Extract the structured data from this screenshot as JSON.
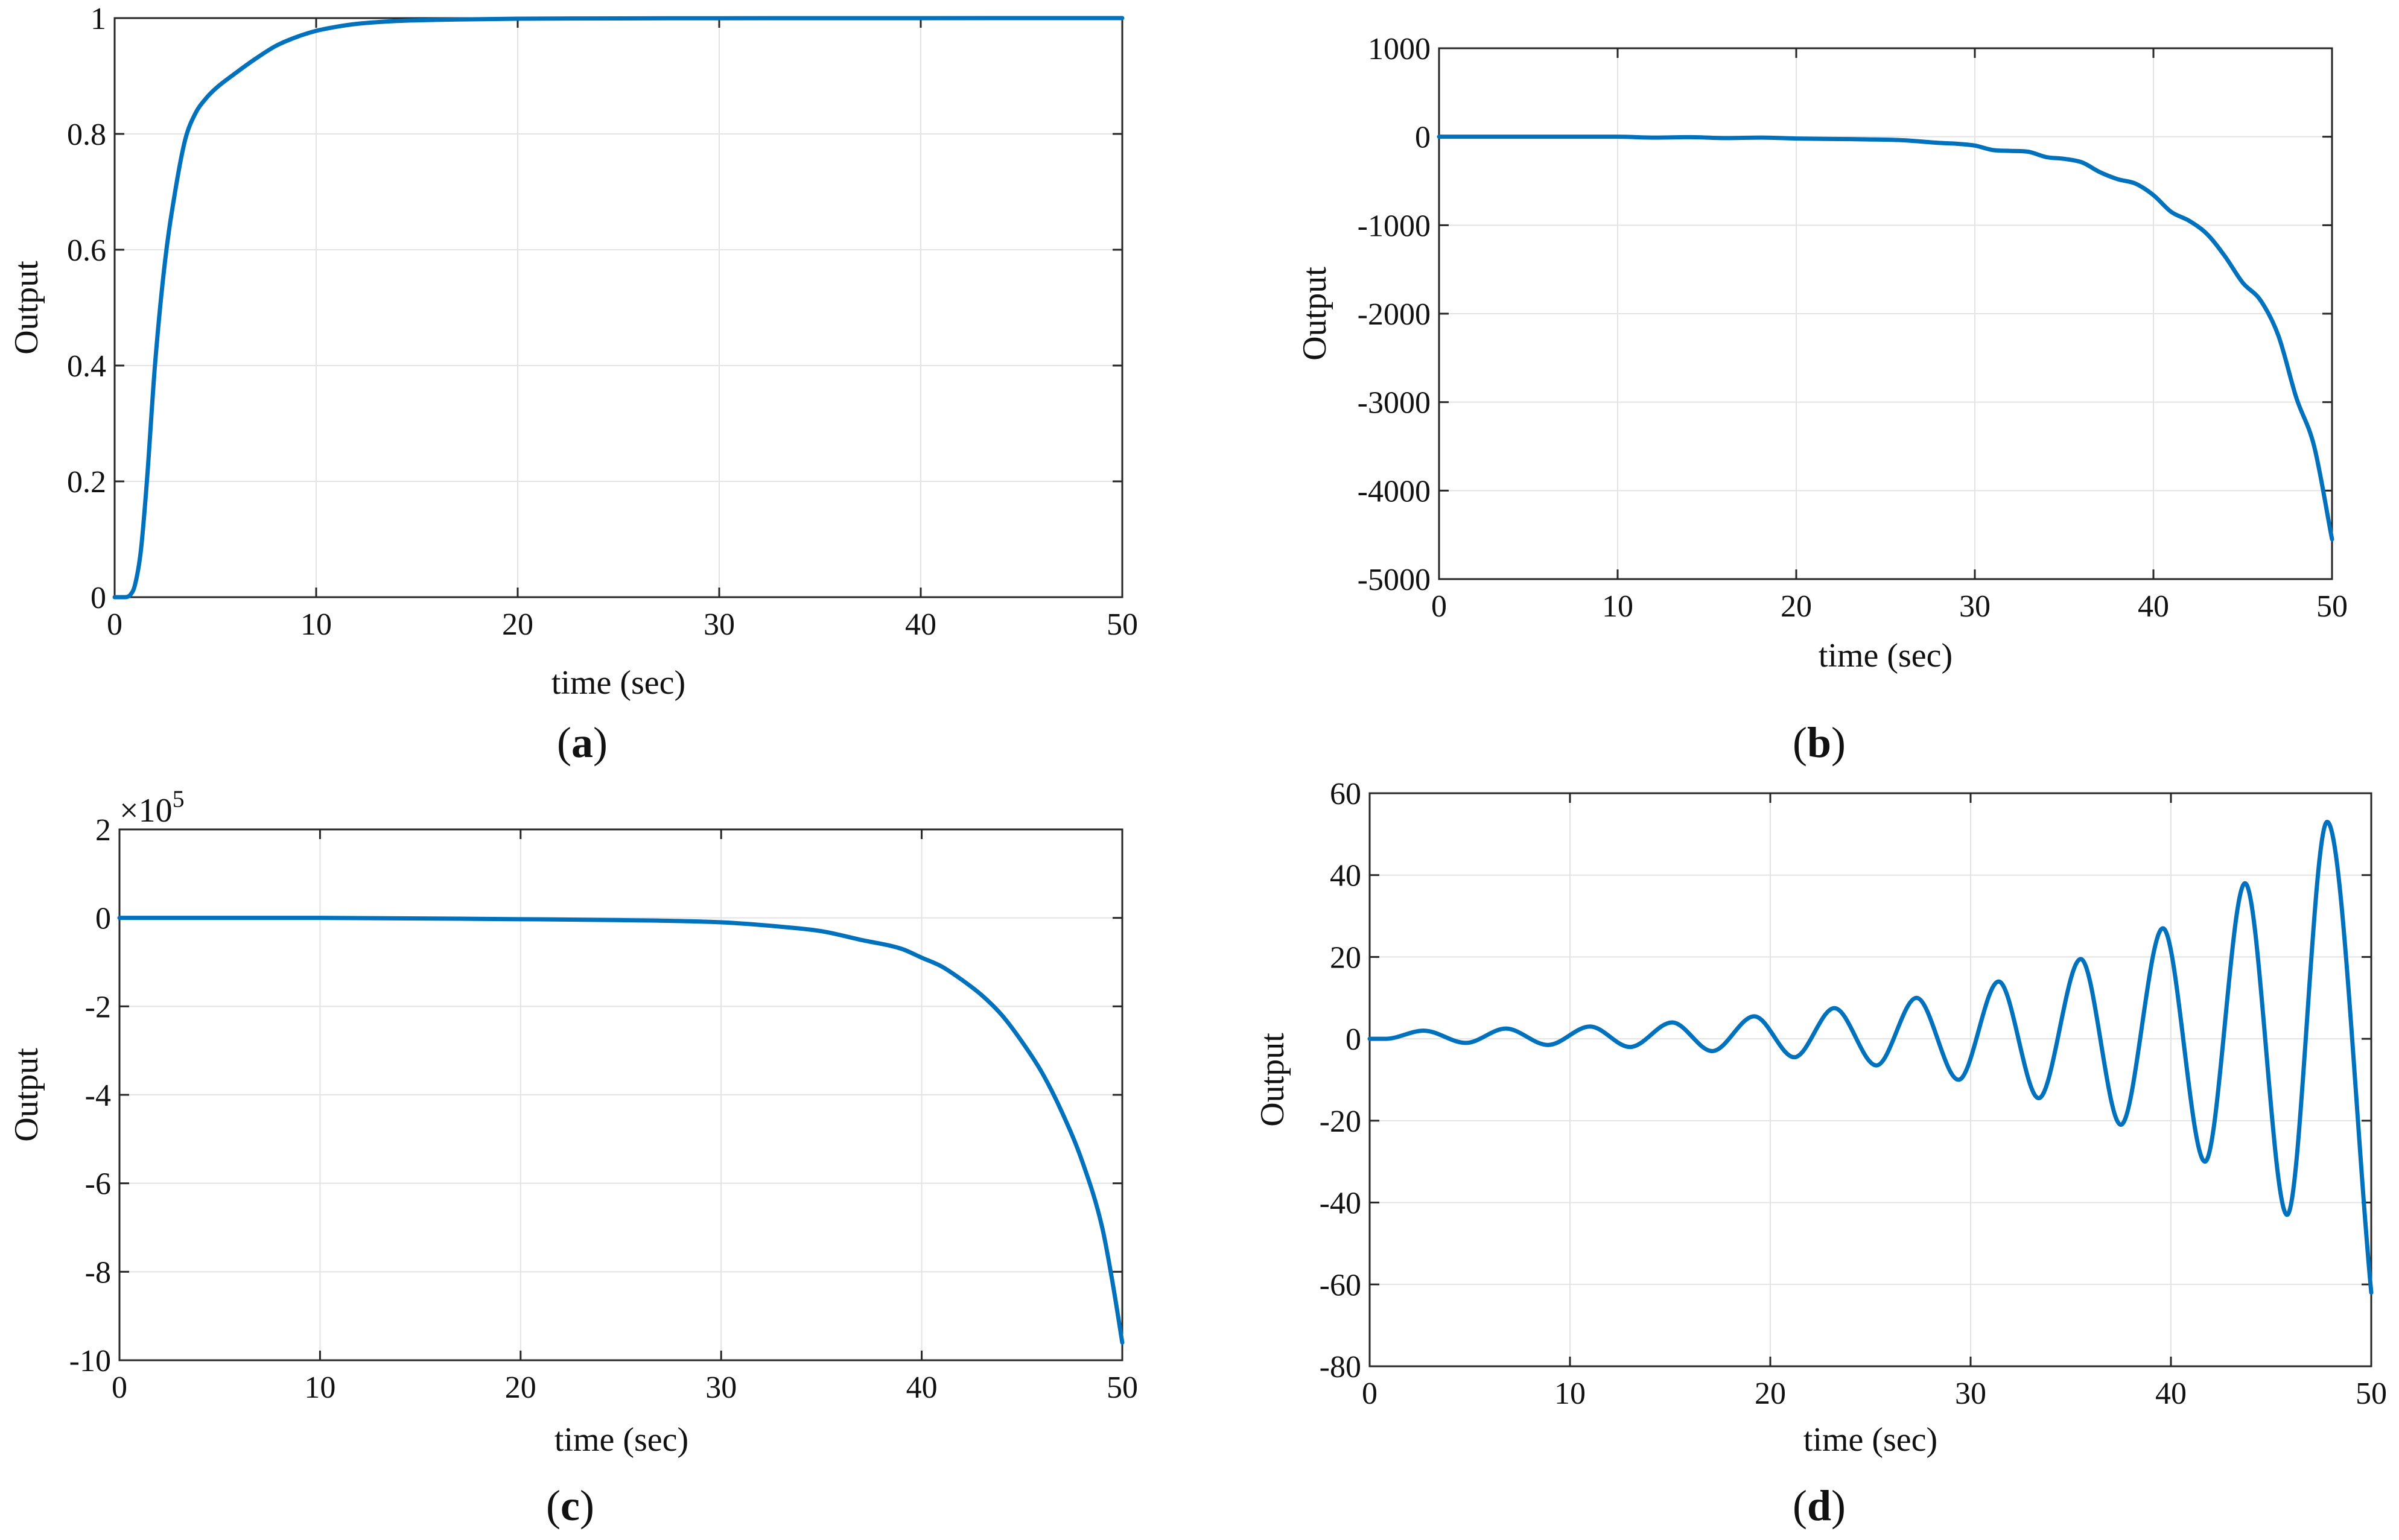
{
  "figure": {
    "line_color": "#0072BD",
    "grid_color": "#e3e3e3",
    "axis_color": "#262626"
  },
  "chart_data": [
    {
      "id": "a",
      "type": "line",
      "caption": "a",
      "xlabel": "time (sec)",
      "ylabel": "Output",
      "xlim": [
        0,
        50
      ],
      "ylim": [
        0,
        1
      ],
      "xticks": [
        0,
        10,
        20,
        30,
        40,
        50
      ],
      "xtick_labels": [
        "0",
        "10",
        "20",
        "30",
        "40",
        "50"
      ],
      "yticks": [
        0,
        0.2,
        0.4,
        0.6,
        0.8,
        1
      ],
      "ytick_labels": [
        "0",
        "0.2",
        "0.4",
        "0.6",
        "0.8",
        "1"
      ],
      "grid": true,
      "series": [
        {
          "name": "Output",
          "x": [
            0,
            0.5,
            0.8,
            1.0,
            1.3,
            1.6,
            2.0,
            2.5,
            3.0,
            3.5,
            4.0,
            4.5,
            5.0,
            6.0,
            7.0,
            8.0,
            9.0,
            10.0,
            11.0,
            12.0,
            14.0,
            16.0,
            18.0,
            20.0,
            25.0,
            30.0,
            40.0,
            50.0
          ],
          "y": [
            0,
            0,
            0.005,
            0.02,
            0.08,
            0.2,
            0.4,
            0.58,
            0.7,
            0.79,
            0.835,
            0.86,
            0.878,
            0.905,
            0.93,
            0.952,
            0.967,
            0.978,
            0.985,
            0.99,
            0.995,
            0.997,
            0.998,
            0.999,
            0.9995,
            0.9998,
            0.9999,
            1
          ]
        }
      ]
    },
    {
      "id": "b",
      "type": "line",
      "caption": "b",
      "xlabel": "time (sec)",
      "ylabel": "Output",
      "xlim": [
        0,
        50
      ],
      "ylim": [
        -5000,
        1000
      ],
      "xticks": [
        0,
        10,
        20,
        30,
        40,
        50
      ],
      "xtick_labels": [
        "0",
        "10",
        "20",
        "30",
        "40",
        "50"
      ],
      "yticks": [
        -5000,
        -4000,
        -3000,
        -2000,
        -1000,
        0,
        1000
      ],
      "ytick_labels": [
        "-5000",
        "-4000",
        "-3000",
        "-2000",
        "-1000",
        "0",
        "1000"
      ],
      "grid": true,
      "series": [
        {
          "name": "Output",
          "x": [
            0,
            5,
            10,
            12,
            14,
            16,
            18,
            20,
            22,
            24,
            26,
            28,
            29,
            30,
            31,
            32,
            33,
            34,
            35,
            36,
            37,
            38,
            39,
            40,
            41,
            42,
            43,
            44,
            45,
            46,
            47,
            48,
            49,
            50
          ],
          "y": [
            0,
            0,
            0,
            -10,
            -5,
            -15,
            -10,
            -20,
            -25,
            -30,
            -40,
            -70,
            -80,
            -100,
            -150,
            -160,
            -170,
            -230,
            -250,
            -290,
            -400,
            -480,
            -530,
            -660,
            -850,
            -950,
            -1100,
            -1350,
            -1650,
            -1850,
            -2250,
            -2950,
            -3500,
            -4550
          ]
        }
      ]
    },
    {
      "id": "c",
      "type": "line",
      "caption": "c",
      "xlabel": "time (sec)",
      "ylabel": "Output",
      "multiplier_base": "×10",
      "multiplier_exponent": "5",
      "xlim": [
        0,
        50
      ],
      "ylim": [
        -10,
        2
      ],
      "y_units": "×10^5",
      "xticks": [
        0,
        10,
        20,
        30,
        40,
        50
      ],
      "xtick_labels": [
        "0",
        "10",
        "20",
        "30",
        "40",
        "50"
      ],
      "yticks": [
        -10,
        -8,
        -6,
        -4,
        -2,
        0,
        2
      ],
      "ytick_labels": [
        "-10",
        "-8",
        "-6",
        "-4",
        "-2",
        "0",
        "2"
      ],
      "grid": true,
      "series": [
        {
          "name": "Output",
          "x": [
            0,
            10,
            20,
            25,
            30,
            33,
            35,
            37,
            39,
            40,
            41,
            42,
            43,
            44,
            45,
            46,
            47,
            48,
            49,
            49.5,
            50
          ],
          "y": [
            0,
            0,
            -0.03,
            -0.05,
            -0.1,
            -0.2,
            -0.3,
            -0.5,
            -0.7,
            -0.9,
            -1.1,
            -1.4,
            -1.75,
            -2.2,
            -2.8,
            -3.5,
            -4.4,
            -5.5,
            -7.0,
            -8.2,
            -9.6
          ]
        }
      ]
    },
    {
      "id": "d",
      "type": "line",
      "caption": "d",
      "xlabel": "time (sec)",
      "ylabel": "Output",
      "xlim": [
        0,
        50
      ],
      "ylim": [
        -80,
        60
      ],
      "xticks": [
        0,
        10,
        20,
        30,
        40,
        50
      ],
      "xtick_labels": [
        "0",
        "10",
        "20",
        "30",
        "40",
        "50"
      ],
      "yticks": [
        -80,
        -60,
        -40,
        -20,
        0,
        20,
        40,
        60
      ],
      "ytick_labels": [
        "-80",
        "-60",
        "-40",
        "-20",
        "0",
        "20",
        "40",
        "60"
      ],
      "grid": true,
      "series": [
        {
          "name": "Output",
          "x": [
            0,
            0.8,
            2.7,
            4.8,
            6.8,
            8.9,
            11.0,
            13.0,
            15.1,
            17.1,
            19.2,
            21.2,
            23.2,
            25.3,
            27.3,
            29.4,
            31.4,
            33.4,
            35.5,
            37.5,
            39.6,
            41.7,
            43.7,
            45.8,
            47.8,
            50.0
          ],
          "y": [
            0,
            0,
            2,
            -1,
            2.5,
            -1.5,
            3,
            -2,
            4,
            -3,
            5.5,
            -4.5,
            7.5,
            -6.5,
            10,
            -10,
            14,
            -14.5,
            19.5,
            -21,
            27,
            -30,
            38,
            -43,
            53,
            -62
          ]
        }
      ]
    }
  ]
}
